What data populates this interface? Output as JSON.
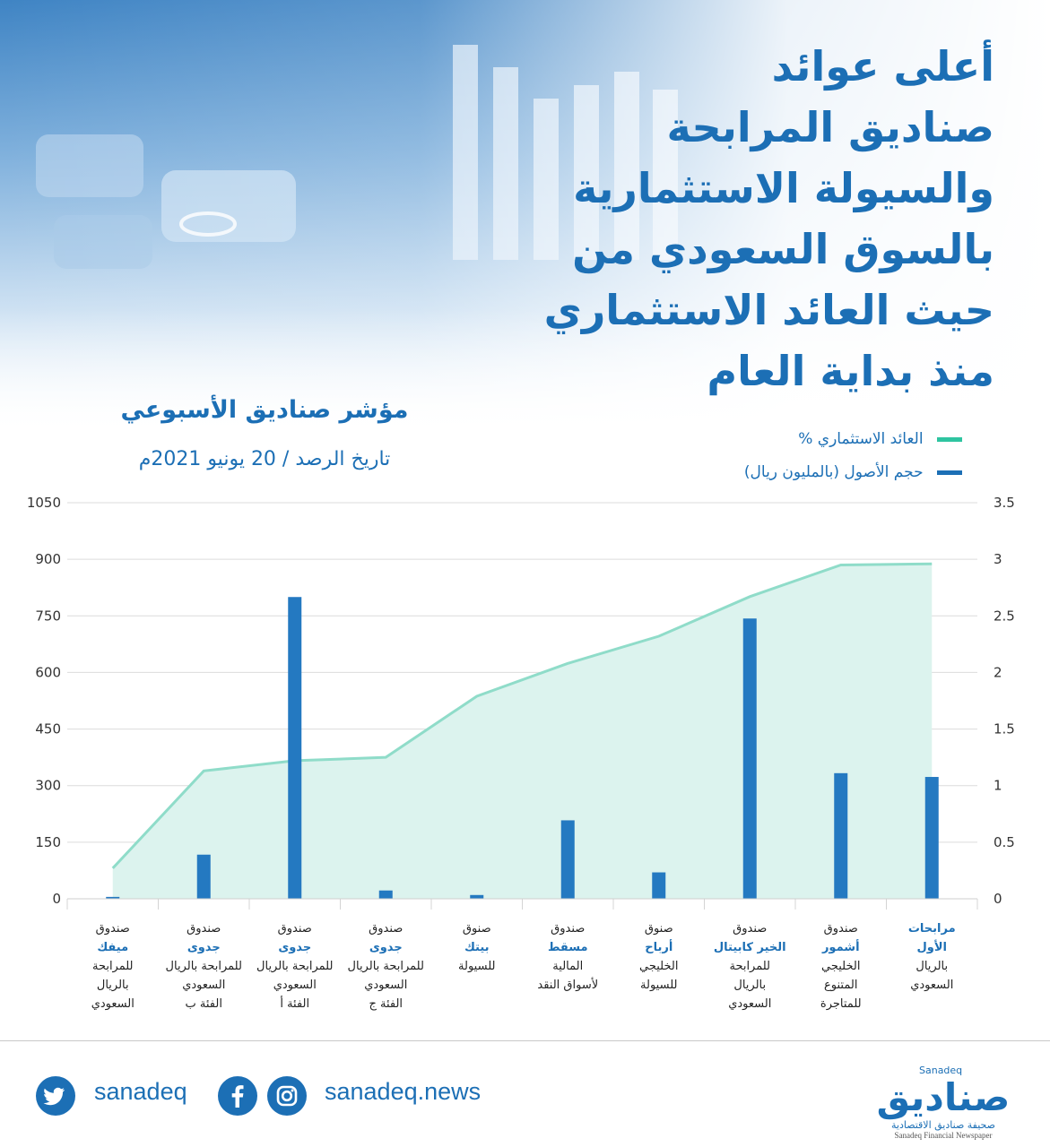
{
  "header": {
    "title_lines": [
      "أعلى عوائد",
      "صناديق المرابحة",
      "والسيولة الاستثمارية",
      "بالسوق السعودي من",
      "حيث العائد الاستثماري",
      "منذ بداية العام"
    ],
    "subtitle": "مؤشر صناديق الأسبوعي",
    "date": "تاريخ الرصد / 20 يونيو 2021م"
  },
  "legend": {
    "return": "العائد الاستثماري %",
    "assets": "حجم الأصول (بالمليون ريال)"
  },
  "colors": {
    "brand_blue": "#1c6fb5",
    "bar_blue": "#2479c1",
    "line_green": "#8fdcc9",
    "area_green": "#dcf3ee",
    "legend_green": "#2ec4a0"
  },
  "chart_data": {
    "type": "bar",
    "categories": [
      {
        "lines": [
          "صندوق",
          "ميفك",
          "للمرابحة",
          "بالريال",
          "السعودي"
        ],
        "highlight": [
          1
        ]
      },
      {
        "lines": [
          "صندوق",
          "جدوى",
          "للمرابحة بالريال",
          "السعودي",
          "الفئة ب"
        ],
        "highlight": [
          1
        ]
      },
      {
        "lines": [
          "صندوق",
          "جدوى",
          "للمرابحة بالريال",
          "السعودي",
          "الفئة أ"
        ],
        "highlight": [
          1
        ]
      },
      {
        "lines": [
          "صندوق",
          "جدوى",
          "للمرابحة بالريال",
          "السعودي",
          "الفئة ج"
        ],
        "highlight": [
          1
        ]
      },
      {
        "lines": [
          "صنوق",
          "بيتك",
          "للسيولة"
        ],
        "highlight": [
          1
        ]
      },
      {
        "lines": [
          "صندوق",
          "مسقط",
          "المالية",
          "لأسواق النقد"
        ],
        "highlight": [
          1
        ]
      },
      {
        "lines": [
          "صنوق",
          "أرباح",
          "الخليجي",
          "للسيولة"
        ],
        "highlight": [
          1
        ]
      },
      {
        "lines": [
          "صندوق",
          "الخير كابيتال",
          "للمرابحة",
          "بالريال",
          "السعودي"
        ],
        "highlight": [
          1
        ]
      },
      {
        "lines": [
          "صندوق",
          "أشمور",
          "الخليجي",
          "المتنوع",
          "للمتاجرة"
        ],
        "highlight": [
          1
        ]
      },
      {
        "lines": [
          "مرابحات",
          "الأول",
          "بالريال",
          "السعودي"
        ],
        "highlight": [
          0,
          1
        ]
      }
    ],
    "series": [
      {
        "name": "حجم الأصول (بالمليون ريال)",
        "axis": "left",
        "kind": "bar",
        "values": [
          5,
          117,
          800,
          22,
          10,
          208,
          70,
          743,
          333,
          323
        ]
      },
      {
        "name": "العائد الاستثماري %",
        "axis": "right",
        "kind": "area",
        "values": [
          0.27,
          1.13,
          1.22,
          1.25,
          1.79,
          2.08,
          2.32,
          2.67,
          2.95,
          2.96
        ]
      }
    ],
    "left_axis": {
      "min": 0,
      "max": 1050,
      "ticks": [
        "0",
        "150",
        "300",
        "450",
        "600",
        "750",
        "900",
        "1050"
      ]
    },
    "right_axis": {
      "min": 0,
      "max": 3.5,
      "ticks": [
        "0",
        "0.5",
        "1",
        "1.5",
        "2",
        "2.5",
        "3",
        "3.5"
      ]
    },
    "grid": true,
    "legend_position": "top-right"
  },
  "footer": {
    "twitter": "sanadeq",
    "website": "sanadeq.news",
    "logo_main": "صناديق",
    "logo_tag": "Sanadeq",
    "logo_sub": "صحيفة صناديق الاقتصادية",
    "logo_en": "Sanadeq Financial Newspaper"
  }
}
